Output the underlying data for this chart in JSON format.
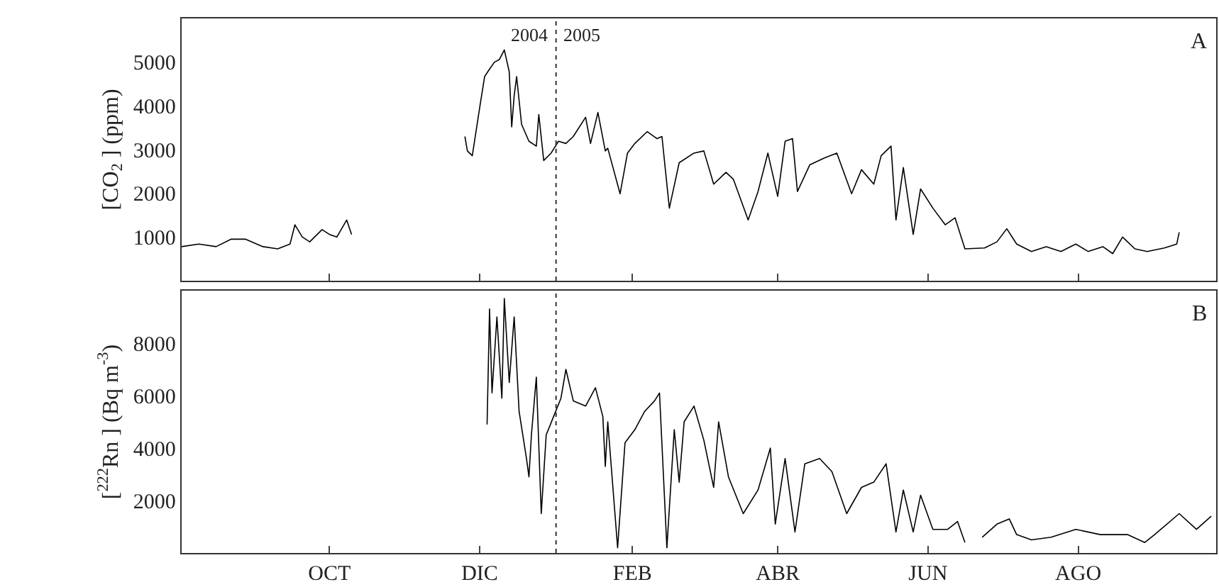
{
  "chart_data": [
    {
      "type": "line",
      "ylabel": "[CO$_{2}$ ] (ppm)",
      "color": "#000000",
      "tick_labels": "y",
      "x": [
        "2004-08-02",
        "2004-08-09",
        "2004-08-16",
        "2004-08-22",
        "2004-08-28",
        "2004-09-04",
        "2004-09-10",
        "2004-09-15",
        "2004-09-17",
        "2004-09-20",
        "2004-09-23",
        "2004-09-28",
        "2004-10-01",
        "2004-10-04",
        "2004-10-08",
        "2004-10-10",
        "2004-10-20",
        "2004-11-25",
        "2004-11-26",
        "2004-11-28",
        "2004-12-01",
        "2004-12-03",
        "2004-12-05",
        "2004-12-07",
        "2004-12-09",
        "2004-12-11",
        "2004-12-13",
        "2004-12-14",
        "2004-12-15",
        "2004-12-16",
        "2004-12-18",
        "2004-12-21",
        "2004-12-24",
        "2004-12-25",
        "2004-12-27",
        "2004-12-30",
        "2005-01-02",
        "2005-01-05",
        "2005-01-08",
        "2005-01-13",
        "2005-01-15",
        "2005-01-18",
        "2005-01-21",
        "2005-01-22",
        "2005-01-27",
        "2005-01-30",
        "2005-02-02",
        "2005-02-07",
        "2005-02-11",
        "2005-02-13",
        "2005-02-16",
        "2005-02-20",
        "2005-02-26",
        "2005-03-02",
        "2005-03-06",
        "2005-03-11",
        "2005-03-14",
        "2005-03-20",
        "2005-03-24",
        "2005-03-28",
        "2005-04-01",
        "2005-04-04",
        "2005-04-07",
        "2005-04-09",
        "2005-04-14",
        "2005-04-20",
        "2005-04-25",
        "2005-05-01",
        "2005-05-05",
        "2005-05-10",
        "2005-05-13",
        "2005-05-17",
        "2005-05-19",
        "2005-05-22",
        "2005-05-26",
        "2005-05-29",
        "2005-06-03",
        "2005-06-08",
        "2005-06-12",
        "2005-06-16",
        "2005-06-24",
        "2005-06-29",
        "2005-07-03",
        "2005-07-07",
        "2005-07-13",
        "2005-07-19",
        "2005-07-25",
        "2005-07-31",
        "2005-08-05",
        "2005-08-11",
        "2005-08-15",
        "2005-08-19",
        "2005-08-24",
        "2005-08-29",
        "2005-09-05",
        "2005-09-10",
        "2005-09-11"
      ],
      "values": [
        780,
        840,
        780,
        950,
        950,
        780,
        730,
        840,
        1280,
        1000,
        890,
        1170,
        1060,
        1000,
        1390,
        1060,
        null,
        3300,
        2970,
        2860,
        3960,
        4670,
        4840,
        5000,
        5060,
        5280,
        4780,
        3520,
        4230,
        4670,
        3580,
        3190,
        3080,
        3800,
        2750,
        2920,
        3190,
        3140,
        3300,
        3740,
        3140,
        3850,
        2970,
        3030,
        1990,
        2920,
        3140,
        3410,
        3250,
        3300,
        1660,
        2700,
        2920,
        2970,
        2210,
        2480,
        2320,
        1390,
        2040,
        2920,
        1930,
        3190,
        3250,
        2040,
        2650,
        2810,
        2920,
        1990,
        2540,
        2210,
        2860,
        3080,
        1390,
        2590,
        1060,
        2100,
        1660,
        1280,
        1440,
        730,
        750,
        890,
        1190,
        840,
        670,
        780,
        670,
        840,
        670,
        780,
        620,
        1000,
        730,
        670,
        750,
        840,
        1110
      ],
      "xlim": [
        "2004-08-02",
        "2005-09-26"
      ],
      "xticks": [
        {
          "value": "2004-10-01",
          "label": null
        },
        {
          "value": "2004-12-01",
          "label": null
        },
        {
          "value": "2005-02-01",
          "label": null
        },
        {
          "value": "2005-04-01",
          "label": null
        },
        {
          "value": "2005-06-01",
          "label": null
        },
        {
          "value": "2005-08-01",
          "label": null
        }
      ],
      "ylim": [
        0,
        6000
      ],
      "yticks": [
        1000,
        2000,
        3000,
        4000,
        5000
      ],
      "ref_lines": [
        {
          "axis": "x",
          "value": "2005-01-01",
          "line_style": "dotted"
        }
      ],
      "annotations": [
        "2004",
        "2005",
        "A"
      ]
    },
    {
      "type": "line",
      "ylabel": "[$^{222}$Rn ] (Bq m$^{-3}$)",
      "color": "#000000",
      "x": [
        "2004-12-04",
        "2004-12-05",
        "2004-12-06",
        "2004-12-08",
        "2004-12-10",
        "2004-12-11",
        "2004-12-13",
        "2004-12-15",
        "2004-12-17",
        "2004-12-20",
        "2004-12-21",
        "2004-12-22",
        "2004-12-24",
        "2004-12-26",
        "2004-12-28",
        "2004-12-31",
        "2005-01-03",
        "2005-01-05",
        "2005-01-08",
        "2005-01-13",
        "2005-01-17",
        "2005-01-20",
        "2005-01-21",
        "2005-01-22",
        "2005-01-26",
        "2005-01-29",
        "2005-02-02",
        "2005-02-06",
        "2005-02-10",
        "2005-02-12",
        "2005-02-15",
        "2005-02-18",
        "2005-02-20",
        "2005-02-22",
        "2005-02-26",
        "2005-03-02",
        "2005-03-06",
        "2005-03-08",
        "2005-03-12",
        "2005-03-18",
        "2005-03-24",
        "2005-03-29",
        "2005-03-31",
        "2005-04-04",
        "2005-04-08",
        "2005-04-12",
        "2005-04-18",
        "2005-04-23",
        "2005-04-29",
        "2005-05-05",
        "2005-05-10",
        "2005-05-15",
        "2005-05-19",
        "2005-05-22",
        "2005-05-26",
        "2005-05-29",
        "2005-06-03",
        "2005-06-09",
        "2005-06-13",
        "2005-06-16",
        "2005-06-20",
        "2005-06-23",
        "2005-06-29",
        "2005-07-04",
        "2005-07-07",
        "2005-07-13",
        "2005-07-21",
        "2005-07-31",
        "2005-08-10",
        "2005-08-21",
        "2005-08-28",
        "2005-09-01",
        "2005-09-11",
        "2005-09-18",
        "2005-09-24"
      ],
      "values": [
        4900,
        9300,
        6100,
        9000,
        5900,
        9700,
        6500,
        9000,
        5400,
        3600,
        2900,
        4500,
        6700,
        1500,
        4500,
        5200,
        5900,
        7000,
        5800,
        5600,
        6300,
        5200,
        3300,
        5000,
        200,
        4200,
        4700,
        5400,
        5800,
        6100,
        200,
        4700,
        2700,
        5000,
        5600,
        4300,
        2500,
        5000,
        2900,
        1500,
        2400,
        4000,
        1100,
        3600,
        800,
        3400,
        3600,
        3100,
        1500,
        2500,
        2700,
        3400,
        800,
        2400,
        800,
        2200,
        900,
        900,
        1200,
        400,
        null,
        600,
        1100,
        1300,
        700,
        500,
        600,
        900,
        700,
        700,
        400,
        700,
        1500,
        900,
        1400
      ],
      "xlim": [
        "2004-08-02",
        "2005-09-26"
      ],
      "xticks": [
        {
          "value": "2004-10-01",
          "label": "OCT"
        },
        {
          "value": "2004-12-01",
          "label": "DIC"
        },
        {
          "value": "2005-02-01",
          "label": "FEB"
        },
        {
          "value": "2005-04-01",
          "label": "ABR"
        },
        {
          "value": "2005-06-01",
          "label": "JUN"
        },
        {
          "value": "2005-08-01",
          "label": "AGO"
        }
      ],
      "ylim": [
        0,
        10000
      ],
      "yticks": [
        2000,
        4000,
        6000,
        8000
      ],
      "ref_lines": [
        {
          "axis": "x",
          "value": "2005-01-01",
          "line_style": "dotted"
        }
      ],
      "annotations": [
        "B"
      ]
    }
  ]
}
